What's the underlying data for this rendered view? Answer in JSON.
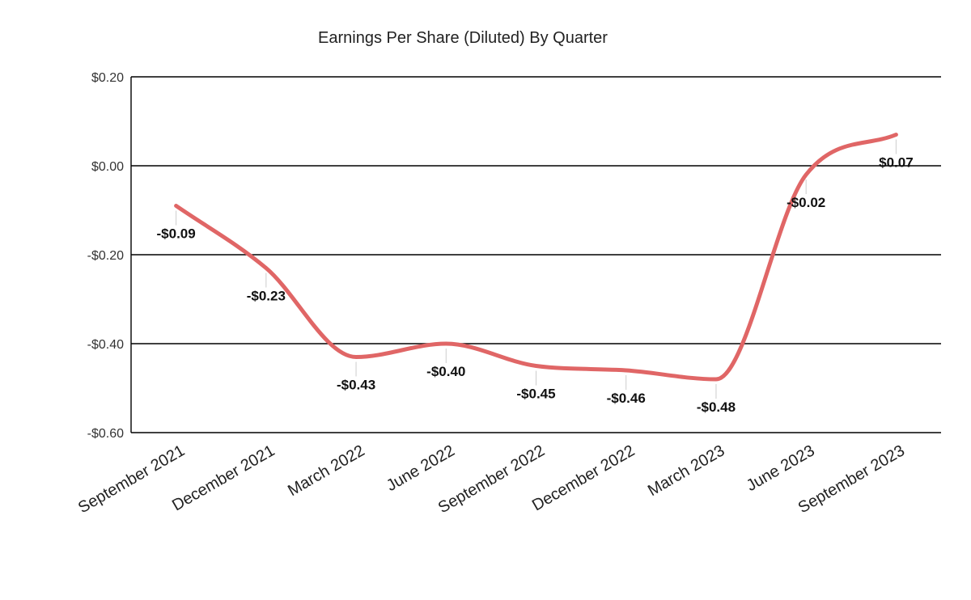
{
  "chart_data": {
    "type": "line",
    "title": "Earnings Per Share (Diluted) By Quarter",
    "xlabel": "",
    "ylabel": "",
    "categories": [
      "September 2021",
      "December 2021",
      "March 2022",
      "June 2022",
      "September 2022",
      "December 2022",
      "March 2023",
      "June 2023",
      "September 2023"
    ],
    "series": [
      {
        "values": [
          -0.09,
          -0.23,
          -0.43,
          -0.4,
          -0.45,
          -0.46,
          -0.48,
          -0.02,
          0.07
        ],
        "data_labels": [
          "-$0.09",
          "-$0.23",
          "-$0.43",
          "-$0.40",
          "-$0.45",
          "-$0.46",
          "-$0.48",
          "-$0.02",
          "$0.07"
        ],
        "color": "#e06666"
      }
    ],
    "ylim": [
      -0.6,
      0.2
    ],
    "yticks": [
      0.2,
      0.0,
      -0.2,
      -0.4,
      -0.6
    ],
    "ytick_labels": [
      "$0.20",
      "$0.00",
      "-$0.20",
      "-$0.40",
      "-$0.60"
    ],
    "grid": true,
    "smooth": true,
    "legend": "none"
  }
}
